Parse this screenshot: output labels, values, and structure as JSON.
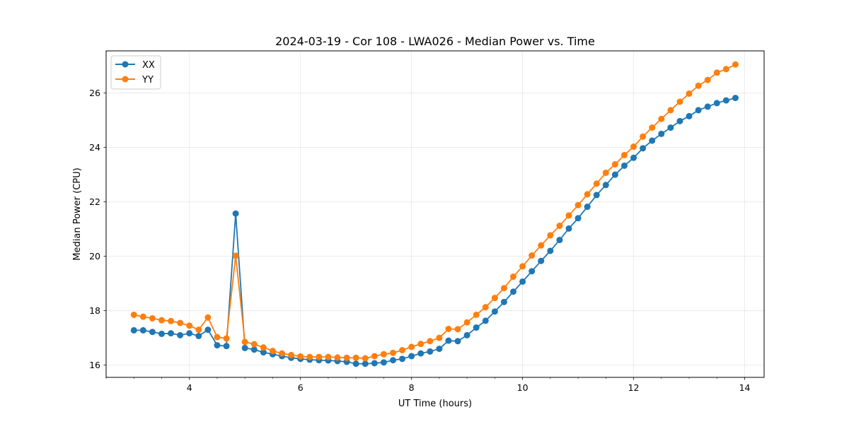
{
  "chart_data": {
    "type": "line",
    "title": "2024-03-19 - Cor 108 - LWA026 - Median Power vs. Time",
    "xlabel": "UT Time (hours)",
    "ylabel": "Median Power (CPU)",
    "xlim": [
      2.5,
      14.35
    ],
    "ylim": [
      15.55,
      27.55
    ],
    "xticks": [
      4,
      6,
      8,
      10,
      12,
      14
    ],
    "xtick_labels": [
      "4",
      "6",
      "8",
      "10",
      "12",
      "14"
    ],
    "xminor_step": 0.5,
    "yticks": [
      16,
      18,
      20,
      22,
      24,
      26
    ],
    "ytick_labels": [
      "16",
      "18",
      "20",
      "22",
      "24",
      "26"
    ],
    "grid": true,
    "legend_position": "top-left",
    "x": [
      3.0,
      3.1667,
      3.3333,
      3.5,
      3.6667,
      3.8333,
      4.0,
      4.1667,
      4.3333,
      4.5,
      4.6667,
      4.8333,
      5.0,
      5.1667,
      5.3333,
      5.5,
      5.6667,
      5.8333,
      6.0,
      6.1667,
      6.3333,
      6.5,
      6.6667,
      6.8333,
      7.0,
      7.1667,
      7.3333,
      7.5,
      7.6667,
      7.8333,
      8.0,
      8.1667,
      8.3333,
      8.5,
      8.6667,
      8.8333,
      9.0,
      9.1667,
      9.3333,
      9.5,
      9.6667,
      9.8333,
      10.0,
      10.1667,
      10.3333,
      10.5,
      10.6667,
      10.8333,
      11.0,
      11.1667,
      11.3333,
      11.5,
      11.6667,
      11.8333,
      12.0,
      12.1667,
      12.3333,
      12.5,
      12.6667,
      12.8333,
      13.0,
      13.1667,
      13.3333,
      13.5,
      13.6667,
      13.8333
    ],
    "series": [
      {
        "name": "XX",
        "color": "#1f77b4",
        "values": [
          17.28,
          17.28,
          17.22,
          17.15,
          17.17,
          17.1,
          17.17,
          17.07,
          17.3,
          16.73,
          16.7,
          21.57,
          16.63,
          16.57,
          16.47,
          16.4,
          16.33,
          16.27,
          16.23,
          16.2,
          16.18,
          16.17,
          16.15,
          16.12,
          16.05,
          16.05,
          16.07,
          16.1,
          16.18,
          16.23,
          16.33,
          16.43,
          16.5,
          16.6,
          16.9,
          16.88,
          17.1,
          17.38,
          17.63,
          17.97,
          18.32,
          18.7,
          19.07,
          19.45,
          19.83,
          20.2,
          20.6,
          21.02,
          21.4,
          21.82,
          22.25,
          22.62,
          23.0,
          23.33,
          23.62,
          23.97,
          24.25,
          24.5,
          24.73,
          24.97,
          25.15,
          25.37,
          25.5,
          25.63,
          25.73,
          25.82
        ]
      },
      {
        "name": "YY",
        "color": "#ff7f0e",
        "values": [
          17.85,
          17.78,
          17.72,
          17.65,
          17.62,
          17.55,
          17.45,
          17.3,
          17.75,
          17.03,
          16.98,
          20.02,
          16.85,
          16.77,
          16.65,
          16.52,
          16.43,
          16.37,
          16.32,
          16.3,
          16.3,
          16.3,
          16.28,
          16.27,
          16.27,
          16.25,
          16.33,
          16.4,
          16.45,
          16.55,
          16.67,
          16.78,
          16.88,
          17.0,
          17.33,
          17.32,
          17.57,
          17.85,
          18.13,
          18.47,
          18.83,
          19.25,
          19.63,
          20.03,
          20.4,
          20.77,
          21.12,
          21.5,
          21.88,
          22.28,
          22.67,
          23.07,
          23.38,
          23.72,
          24.03,
          24.4,
          24.73,
          25.05,
          25.37,
          25.68,
          25.98,
          26.27,
          26.48,
          26.75,
          26.88,
          27.05
        ]
      }
    ]
  }
}
